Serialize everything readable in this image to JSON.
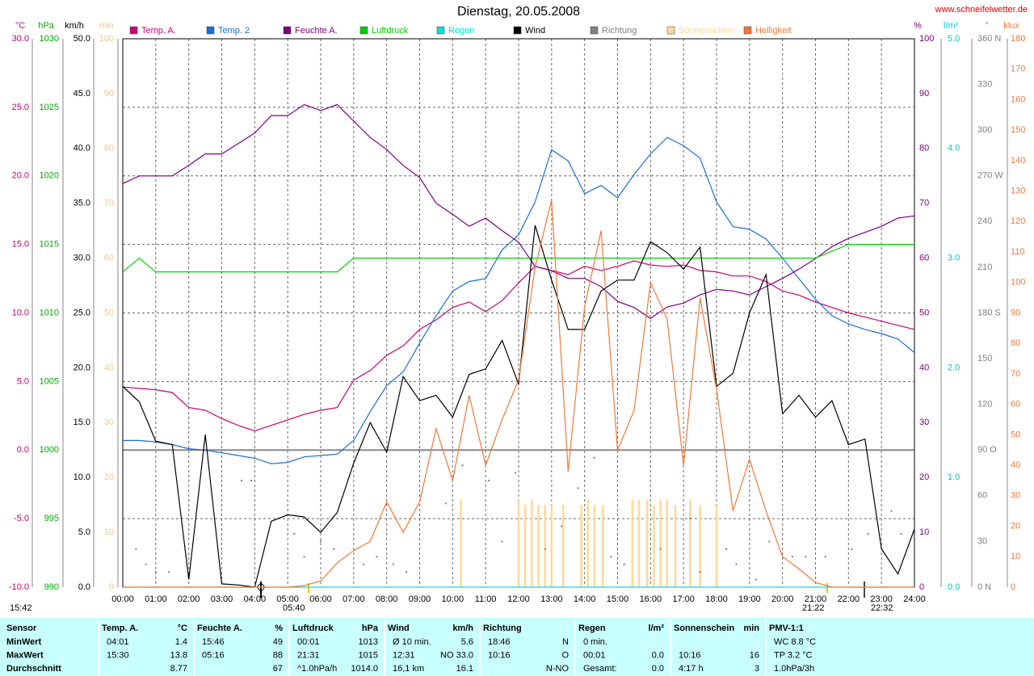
{
  "chart_data": {
    "type": "line",
    "title": "Dienstag, 20.05.2008",
    "source": "www.schneifelwetter.de",
    "annotations": [
      "15:42",
      "05:40",
      "21:22",
      "22:32"
    ],
    "grid": true,
    "xlim": [
      0,
      24
    ],
    "xticks": [
      {
        "value": 0,
        "label": "00:00"
      },
      {
        "value": 1,
        "label": "01:00"
      },
      {
        "value": 2,
        "label": "02:00"
      },
      {
        "value": 3,
        "label": "03:00"
      },
      {
        "value": 4,
        "label": "04:00"
      },
      {
        "value": 5,
        "label": "05:00"
      },
      {
        "value": 6,
        "label": "06:00"
      },
      {
        "value": 7,
        "label": "07:00"
      },
      {
        "value": 8,
        "label": "08:00"
      },
      {
        "value": 9,
        "label": "09:00"
      },
      {
        "value": 10,
        "label": "10:00"
      },
      {
        "value": 11,
        "label": "11:00"
      },
      {
        "value": 12,
        "label": "12:00"
      },
      {
        "value": 13,
        "label": "13:00"
      },
      {
        "value": 14,
        "label": "14:00"
      },
      {
        "value": 15,
        "label": "15:00"
      },
      {
        "value": 16,
        "label": "16:00"
      },
      {
        "value": 17,
        "label": "17:00"
      },
      {
        "value": 18,
        "label": "18:00"
      },
      {
        "value": 19,
        "label": "19:00"
      },
      {
        "value": 20,
        "label": "20:00"
      },
      {
        "value": 21,
        "label": "21:00"
      },
      {
        "value": 22,
        "label": "22:00"
      },
      {
        "value": 23,
        "label": "23:00"
      },
      {
        "value": 24,
        "label": "24:00"
      }
    ],
    "axes": [
      {
        "unit": "°C",
        "color": "#cc0077",
        "lim": [
          -10,
          30
        ],
        "ticks": [
          {
            "value": -10,
            "label": "-10.0"
          },
          {
            "value": -5,
            "label": "-5.0"
          },
          {
            "value": 0,
            "label": "0.0"
          },
          {
            "value": 5,
            "label": "5.0"
          },
          {
            "value": 10,
            "label": "10.0"
          },
          {
            "value": 15,
            "label": "15.0"
          },
          {
            "value": 20,
            "label": "20.0"
          },
          {
            "value": 25,
            "label": "25.0"
          },
          {
            "value": 30,
            "label": "30.0"
          }
        ]
      },
      {
        "unit": "hPa",
        "color": "#00aa00",
        "lim": [
          990,
          1030
        ],
        "ticks": [
          990,
          995,
          1000,
          1005,
          1010,
          1015,
          1020,
          1025,
          1030
        ]
      },
      {
        "unit": "km/h",
        "color": "#000000",
        "lim": [
          0,
          50
        ],
        "ticks": [
          {
            "value": 0,
            "label": "0.0"
          },
          {
            "value": 5,
            "label": "5.0"
          },
          {
            "value": 10,
            "label": "10.0"
          },
          {
            "value": 15,
            "label": "15.0"
          },
          {
            "value": 20,
            "label": "20.0"
          },
          {
            "value": 25,
            "label": "25.0"
          },
          {
            "value": 30,
            "label": "30.0"
          },
          {
            "value": 35,
            "label": "35.0"
          },
          {
            "value": 40,
            "label": "40.0"
          },
          {
            "value": 45,
            "label": "45.0"
          },
          {
            "value": 50,
            "label": "50.0"
          }
        ]
      },
      {
        "unit": "min",
        "color": "#f0c888",
        "lim": [
          0,
          100
        ],
        "ticks": [
          0,
          10,
          20,
          30,
          40,
          50,
          60,
          70,
          80,
          90,
          100
        ]
      },
      {
        "unit": "%",
        "color": "#800080",
        "lim": [
          0,
          100
        ],
        "ticks": [
          0,
          10,
          20,
          30,
          40,
          50,
          60,
          70,
          80,
          90,
          100
        ]
      },
      {
        "unit": "l/m²",
        "color": "#00c8c8",
        "lim": [
          0,
          5
        ],
        "ticks": [
          {
            "value": 0,
            "label": "0.0"
          },
          {
            "value": 1,
            "label": "1.0"
          },
          {
            "value": 2,
            "label": "2.0"
          },
          {
            "value": 3,
            "label": "3.0"
          },
          {
            "value": 4,
            "label": "4.0"
          },
          {
            "value": 5,
            "label": "5.0"
          }
        ]
      },
      {
        "unit": "°",
        "color": "#808080",
        "lim": [
          0,
          360
        ],
        "ticks": [
          {
            "value": 0,
            "label": "0 N"
          },
          30,
          60,
          {
            "value": 90,
            "label": "90 O"
          },
          120,
          150,
          {
            "value": 180,
            "label": "180 S"
          },
          210,
          240,
          {
            "value": 270,
            "label": "270 W"
          },
          300,
          330,
          {
            "value": 360,
            "label": "360 N"
          }
        ]
      },
      {
        "unit": "klux",
        "color": "#f07838",
        "lim": [
          0,
          180
        ],
        "ticks": [
          0,
          10,
          20,
          30,
          40,
          50,
          60,
          70,
          80,
          90,
          100,
          110,
          120,
          130,
          140,
          150,
          160,
          170,
          180
        ]
      }
    ],
    "x": [
      0,
      0.5,
      1,
      1.5,
      2,
      2.5,
      3,
      3.5,
      4,
      4.5,
      5,
      5.5,
      6,
      6.5,
      7,
      7.5,
      8,
      8.5,
      9,
      9.5,
      10,
      10.5,
      11,
      11.5,
      12,
      12.5,
      13,
      13.5,
      14,
      14.5,
      15,
      15.5,
      16,
      16.5,
      17,
      17.5,
      18,
      18.5,
      19,
      19.5,
      20,
      20.5,
      21,
      21.5,
      22,
      22.5,
      23,
      23.5,
      24
    ],
    "series": [
      {
        "name": "Temp. A.",
        "color": "#cc0077",
        "axis": 0,
        "style": "line",
        "values": [
          4.6,
          4.5,
          4.4,
          4.2,
          3.1,
          2.9,
          2.3,
          1.8,
          1.4,
          1.8,
          2.2,
          2.6,
          2.9,
          3.1,
          5.1,
          5.8,
          6.9,
          7.6,
          8.8,
          9.5,
          10.4,
          10.8,
          10.1,
          10.9,
          12.2,
          13.4,
          13.1,
          12.8,
          13.4,
          13.1,
          13.4,
          13.8,
          13.5,
          13.4,
          13.5,
          13.1,
          13.0,
          12.7,
          12.7,
          12.3,
          11.6,
          11.3,
          10.8,
          10.4,
          10.0,
          9.7,
          9.4,
          9.1,
          8.8
        ]
      },
      {
        "name": "Temp. 2",
        "color": "#1a6fd6",
        "axis": 0,
        "style": "line",
        "values": [
          0.7,
          0.7,
          0.6,
          0.4,
          0.1,
          0.0,
          -0.2,
          -0.4,
          -0.6,
          -1.0,
          -0.9,
          -0.5,
          -0.4,
          -0.3,
          0.7,
          2.8,
          4.7,
          5.7,
          7.8,
          9.8,
          11.6,
          12.3,
          12.5,
          14.6,
          15.7,
          18.1,
          21.9,
          21.1,
          18.7,
          19.3,
          18.4,
          20.1,
          21.6,
          22.8,
          22.2,
          21.3,
          18.1,
          16.3,
          16.1,
          15.4,
          14.0,
          12.5,
          11.0,
          9.8,
          9.2,
          8.8,
          8.5,
          8.1,
          7.1
        ]
      },
      {
        "name": "Feuchte A.",
        "color": "#800080",
        "axis": 4,
        "style": "line",
        "values": [
          73.6,
          75,
          75,
          75,
          76.9,
          79,
          79,
          80.9,
          82.8,
          86,
          86,
          88,
          86.9,
          88,
          85,
          82,
          79.8,
          76.9,
          74.7,
          70,
          68,
          65.8,
          67.3,
          65,
          62.9,
          58.5,
          57.7,
          56.3,
          56.3,
          54.8,
          52.1,
          51,
          49,
          51.1,
          51.8,
          53.3,
          54.3,
          54,
          53.3,
          54.8,
          56.3,
          58,
          59.9,
          62.1,
          63.6,
          64.7,
          65.8,
          67.3,
          67.7
        ]
      },
      {
        "name": "Luftdruck",
        "color": "#00d000",
        "axis": 1,
        "style": "line",
        "values": [
          1013,
          1014,
          1013,
          1013,
          1013,
          1013,
          1013,
          1013,
          1013,
          1013,
          1013,
          1013,
          1013,
          1013,
          1014,
          1014,
          1014,
          1014,
          1014,
          1014,
          1014,
          1014,
          1014,
          1014,
          1014,
          1014,
          1014,
          1014,
          1014,
          1014,
          1014,
          1014,
          1014,
          1014,
          1014,
          1014,
          1014,
          1014,
          1014,
          1014,
          1014,
          1014,
          1014,
          1014.5,
          1015,
          1015,
          1015,
          1015,
          1015
        ]
      },
      {
        "name": "Regen",
        "color": "#00e0e0",
        "axis": 5,
        "style": "line",
        "x": [
          0,
          24
        ],
        "values": [
          0,
          0
        ]
      },
      {
        "name": "Wind",
        "color": "#000000",
        "axis": 2,
        "style": "line",
        "values": [
          18.3,
          16.9,
          13.3,
          13.0,
          0.7,
          13.9,
          0.3,
          0.2,
          0.0,
          6.0,
          6.6,
          6.4,
          5.0,
          6.8,
          11.3,
          15.0,
          12.3,
          19.2,
          17.0,
          17.5,
          15.5,
          19.4,
          19.9,
          22.5,
          18.5,
          33.0,
          28.0,
          23.5,
          23.5,
          27.0,
          28.0,
          28.0,
          31.5,
          30.5,
          29.0,
          31.0,
          18.3,
          19.5,
          25.0,
          28.5,
          15.8,
          17.5,
          15.5,
          17.0,
          13.0,
          13.5,
          3.5,
          1.2,
          5.3
        ]
      },
      {
        "name": "Richtung",
        "color": "#808080",
        "axis": 6,
        "style": "dots",
        "x": [
          0.4,
          0.7,
          1.0,
          1.4,
          3.6,
          3.9,
          5.2,
          5.5,
          6.0,
          6.4,
          7.3,
          7.7,
          8.2,
          8.6,
          9.8,
          10.3,
          10.6,
          11.1,
          11.5,
          11.9,
          12.8,
          13.3,
          13.8,
          14.3,
          14.8,
          15.2,
          16.3,
          17.2,
          17.5,
          18.3,
          18.6,
          19.2,
          19.6,
          20.3,
          20.7,
          21.3,
          22.1,
          22.6,
          23.3,
          23.6
        ],
        "values": [
          25,
          15,
          10,
          10,
          70,
          70,
          35,
          20,
          30,
          25,
          15,
          20,
          15,
          10,
          55,
          80,
          90,
          70,
          30,
          75,
          25,
          40,
          65,
          85,
          20,
          15,
          25,
          45,
          10,
          25,
          15,
          5,
          30,
          20,
          20,
          20,
          25,
          35,
          50,
          35
        ]
      },
      {
        "name": "Sonnenschein",
        "color": "#ffd898",
        "axis": 3,
        "style": "bars",
        "x": [
          10.25,
          12.0,
          12.2,
          12.4,
          12.6,
          12.8,
          13.0,
          13.35,
          13.9,
          14.1,
          14.3,
          14.55,
          15.45,
          15.65,
          15.9,
          16.1,
          16.3,
          16.5,
          16.75,
          17.2,
          17.5,
          18.0
        ],
        "values": [
          16,
          16,
          15,
          16,
          15,
          15,
          15,
          15,
          15,
          16,
          15,
          15,
          16,
          16,
          16,
          15,
          16,
          16,
          15,
          16,
          15,
          15
        ]
      },
      {
        "name": "Helligkeit",
        "color": "#f07838",
        "axis": 7,
        "style": "line",
        "values": [
          0,
          0,
          0,
          0,
          0,
          0,
          0,
          0,
          0,
          0,
          0,
          0.5,
          2,
          8,
          12,
          15,
          28,
          18,
          28,
          52,
          35,
          63,
          40,
          55,
          68,
          105,
          127,
          38,
          92,
          117,
          45,
          58,
          100,
          88,
          40,
          95,
          65,
          25,
          42,
          25,
          10,
          6,
          1.5,
          0,
          0,
          0,
          0,
          0,
          0
        ]
      }
    ]
  },
  "table": {
    "columns": [
      {
        "title": "Sensor",
        "rows": [
          "MinWert",
          "MaxWert",
          "Durchschnitt"
        ]
      },
      {
        "title": "Temp. A.",
        "unit": "°C",
        "rows": [
          {
            "time": "04:01",
            "value": "1.4"
          },
          {
            "time": "15:30",
            "value": "13.8"
          },
          {
            "value": "8.77"
          }
        ]
      },
      {
        "title": "Feuchte A.",
        "unit": "%",
        "rows": [
          {
            "time": "15:46",
            "value": "49"
          },
          {
            "time": "05:16",
            "value": "88"
          },
          {
            "value": "67"
          }
        ]
      },
      {
        "title": "Luftdruck",
        "unit": "hPa",
        "rows": [
          {
            "time": "00:01",
            "value": "1013"
          },
          {
            "time": "21:31",
            "value": "1015"
          },
          {
            "time": "^1.0hPa/h",
            "value": "1014.0"
          }
        ]
      },
      {
        "title": "Wind",
        "unit": "km/h",
        "rows": [
          {
            "time": "Ø 10 min.",
            "value": "5.6"
          },
          {
            "time": "12:31",
            "value": "NO 33.0"
          },
          {
            "time": "16,1 km",
            "value": "16.1"
          }
        ]
      },
      {
        "title": "Richtung",
        "rows": [
          {
            "time": "18:46",
            "value": "N"
          },
          {
            "time": "10:16",
            "value": "O"
          },
          {
            "value": "N-NO"
          }
        ]
      },
      {
        "title": "Regen",
        "unit": "l/m²",
        "rows": [
          {
            "time": "0 min."
          },
          {
            "time": "00:01",
            "value": "0.0"
          },
          {
            "time": "Gesamt:",
            "value": "0.0"
          }
        ]
      },
      {
        "title": "Sonnenschein",
        "unit": "min",
        "rows": [
          {},
          {
            "time": "10:16",
            "value": "16"
          },
          {
            "time": "4:17 h",
            "value": "3"
          }
        ]
      },
      {
        "title": "PMV-1:1",
        "rows": [
          {
            "time": "WC 8.8 °C"
          },
          {
            "time": "TP 3.2 °C"
          },
          {
            "time": "1.0hPa/3h"
          }
        ]
      }
    ]
  }
}
